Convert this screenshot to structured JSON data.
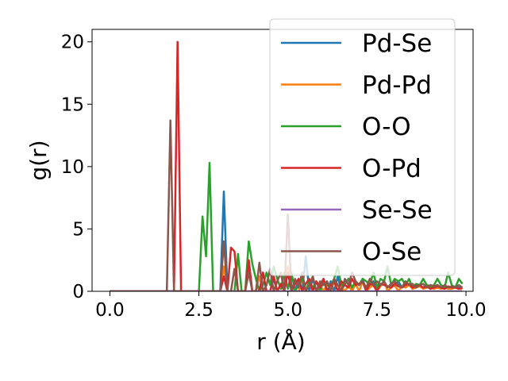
{
  "chart_data": {
    "type": "line",
    "title": "",
    "xlabel": "r (Å)",
    "ylabel": "g(r)",
    "xlim": [
      -0.5,
      10.2
    ],
    "ylim": [
      0,
      21
    ],
    "xticks": [
      0.0,
      2.5,
      5.0,
      7.5,
      10.0
    ],
    "xtick_labels": [
      "0.0",
      "2.5",
      "5.0",
      "7.5",
      "10.0"
    ],
    "yticks": [
      0,
      5,
      10,
      15,
      20
    ],
    "ytick_labels": [
      "0",
      "5",
      "10",
      "15",
      "20"
    ],
    "grid": false,
    "legend_position": "top-right",
    "x": [
      0.0,
      0.1,
      0.2,
      0.3,
      0.4,
      0.5,
      0.6,
      0.7,
      0.8,
      0.9,
      1.0,
      1.1,
      1.2,
      1.3,
      1.4,
      1.5,
      1.6,
      1.7,
      1.8,
      1.9,
      2.0,
      2.1,
      2.2,
      2.3,
      2.4,
      2.5,
      2.6,
      2.7,
      2.8,
      2.9,
      3.0,
      3.1,
      3.2,
      3.3,
      3.4,
      3.5,
      3.6,
      3.7,
      3.8,
      3.9,
      4.0,
      4.1,
      4.2,
      4.3,
      4.4,
      4.5,
      4.6,
      4.7,
      4.8,
      4.9,
      5.0,
      5.1,
      5.2,
      5.3,
      5.4,
      5.5,
      5.6,
      5.7,
      5.8,
      5.9,
      6.0,
      6.1,
      6.2,
      6.3,
      6.4,
      6.5,
      6.6,
      6.7,
      6.8,
      6.9,
      7.0,
      7.1,
      7.2,
      7.3,
      7.4,
      7.5,
      7.6,
      7.7,
      7.8,
      7.9,
      8.0,
      8.1,
      8.2,
      8.3,
      8.4,
      8.5,
      8.6,
      8.7,
      8.8,
      8.9,
      9.0,
      9.1,
      9.2,
      9.3,
      9.4,
      9.5,
      9.6,
      9.7,
      9.8,
      9.9
    ],
    "series": [
      {
        "name": "Pd-Se",
        "color": "#1f77b4",
        "values": [
          0,
          0,
          0,
          0,
          0,
          0,
          0,
          0,
          0,
          0,
          0,
          0,
          0,
          0,
          0,
          0,
          0,
          0,
          0,
          0,
          0,
          0,
          0,
          0,
          0,
          0,
          0,
          0,
          0,
          0,
          0,
          0,
          8.0,
          0,
          0,
          0,
          0,
          0,
          0,
          2.0,
          0,
          0,
          0,
          1.5,
          0,
          0,
          1.0,
          0,
          0,
          0,
          2.0,
          0,
          0,
          1.0,
          0,
          2.8,
          0,
          1.0,
          0,
          0.5,
          1.0,
          0,
          0.8,
          0,
          1.2,
          0,
          0.6,
          1.0,
          0,
          0.8,
          0.5,
          1.0,
          0,
          0.6,
          0.8,
          0,
          0.5,
          0.8,
          0.3,
          0.6,
          0.4,
          0.8,
          0.3,
          0.5,
          0.6,
          0.2,
          0.5,
          0.4,
          0.3,
          0.5,
          0.4,
          0.2,
          0.5,
          0.3,
          0.4,
          0.3,
          0.2,
          0.4,
          0.3,
          0.2
        ]
      },
      {
        "name": "Pd-Pd",
        "color": "#ff7f0e",
        "values": [
          0,
          0,
          0,
          0,
          0,
          0,
          0,
          0,
          0,
          0,
          0,
          0,
          0,
          0,
          0,
          0,
          0,
          0,
          0,
          0,
          0,
          0,
          0,
          0,
          0,
          0,
          0,
          0,
          0,
          0,
          0,
          0,
          2.0,
          0,
          0,
          0,
          0,
          0,
          0,
          0,
          0,
          0,
          1.2,
          0,
          0,
          0,
          0,
          0,
          0,
          0,
          2.0,
          0,
          0,
          0,
          1.0,
          0,
          0.8,
          0,
          0,
          0.5,
          0,
          0.6,
          0,
          0.8,
          0,
          0.4,
          0,
          0.5,
          0,
          0.6,
          0,
          0.8,
          0,
          0.3,
          0.5,
          0,
          0.4,
          0.8,
          0,
          0.3,
          0.5,
          0,
          0.4,
          0.3,
          0.5,
          0.2,
          0.3,
          0.4,
          0.2,
          0.3,
          0.4,
          0.2,
          0.3,
          0.2,
          0.3,
          0.2,
          0.2,
          0.3,
          0.2,
          0.2
        ]
      },
      {
        "name": "O-O",
        "color": "#2ca02c",
        "values": [
          0,
          0,
          0,
          0,
          0,
          0,
          0,
          0,
          0,
          0,
          0,
          0,
          0,
          0,
          0,
          0,
          0,
          0,
          0,
          0,
          0,
          0,
          0,
          0,
          0,
          0,
          6.0,
          2.8,
          10.3,
          0,
          0,
          0,
          0,
          0,
          0,
          0,
          3.0,
          0,
          0,
          4.0,
          2.2,
          1.0,
          0,
          0.5,
          1.5,
          0.5,
          2.0,
          1.0,
          0.2,
          1.5,
          0.2,
          1.5,
          0,
          0.5,
          1.0,
          0,
          0.8,
          0.3,
          0.8,
          0,
          0.8,
          0.5,
          0.5,
          1.0,
          2.0,
          0.5,
          0.6,
          1.0,
          0.3,
          0.8,
          0.5,
          1.0,
          0.8,
          0.5,
          1.5,
          0.3,
          1.0,
          0.8,
          2.0,
          0.5,
          1.0,
          0.8,
          1.0,
          0.5,
          1.0,
          0.3,
          0.6,
          0.5,
          1.0,
          0.5,
          0.3,
          0.5,
          1.0,
          0.5,
          0.3,
          1.5,
          0.5,
          0.3,
          1.0,
          0.6
        ]
      },
      {
        "name": "O-Pd",
        "color": "#d62728",
        "values": [
          0,
          0,
          0,
          0,
          0,
          0,
          0,
          0,
          0,
          0,
          0,
          0,
          0,
          0,
          0,
          0,
          0,
          0,
          0,
          20.0,
          0,
          0,
          0,
          0,
          0,
          0,
          0,
          0,
          0,
          0,
          0,
          0,
          1.2,
          0,
          3.5,
          3.2,
          0,
          0,
          0,
          2.5,
          0,
          0,
          0,
          1.5,
          0,
          0,
          1.2,
          0,
          0.6,
          0,
          1.5,
          0,
          0.6,
          1.0,
          0,
          0.6,
          1.0,
          0,
          0.8,
          0.3,
          1.0,
          0,
          0.5,
          0.8,
          0,
          0.8,
          0.5,
          0.3,
          1.0,
          0.5,
          0.6,
          0.8,
          0,
          0.6,
          0.5,
          0,
          0.6,
          0.5,
          0.4,
          0.3,
          0.6,
          0.4,
          0.3,
          0.5,
          0.6,
          0.3,
          0.4,
          0.5,
          0.3,
          0.4,
          0.2,
          0.3,
          0.4,
          0.3,
          0.2,
          0.4,
          0.3,
          0.3,
          0.2,
          0.3
        ]
      },
      {
        "name": "Se-Se",
        "color": "#9467bd",
        "values": [
          0,
          0,
          0,
          0,
          0,
          0,
          0,
          0,
          0,
          0,
          0,
          0,
          0,
          0,
          0,
          0,
          0,
          0,
          0,
          0,
          0,
          0,
          0,
          0,
          0,
          0,
          0,
          0,
          0,
          0,
          0,
          0,
          0,
          0,
          0,
          0,
          0,
          0,
          0,
          0,
          0,
          0,
          0,
          0,
          0,
          0,
          0,
          0,
          0,
          0,
          0,
          0,
          0,
          0,
          0,
          0,
          0,
          0,
          0,
          0,
          0,
          0,
          0,
          0,
          0,
          0,
          0,
          0,
          0,
          0,
          0,
          0,
          0,
          0,
          0,
          0,
          0,
          0,
          0,
          0,
          0,
          0,
          0,
          0,
          0,
          0,
          0,
          0,
          0,
          0,
          0,
          0,
          0,
          0,
          0,
          0,
          0,
          0,
          0,
          0
        ]
      },
      {
        "name": "O-Se",
        "color": "#8c564b",
        "values": [
          0,
          0,
          0,
          0,
          0,
          0,
          0,
          0,
          0,
          0,
          0,
          0,
          0,
          0,
          0,
          0,
          0,
          13.7,
          0,
          0,
          0,
          0,
          0,
          0,
          0,
          0,
          0,
          0,
          0,
          0,
          0,
          0,
          4.0,
          0,
          0,
          1.8,
          0,
          0,
          0,
          1.5,
          0,
          0,
          2.3,
          0,
          0.5,
          1.8,
          0,
          0.8,
          1.5,
          0,
          6.2,
          0,
          1.0,
          0.3,
          1.5,
          0,
          0.5,
          1.2,
          0,
          0.8,
          0.5,
          0.8,
          0,
          1.0,
          0.5,
          0,
          1.0,
          0.5,
          1.5,
          0.8,
          0.5,
          0.8,
          0.3,
          1.0,
          0.5,
          0.8,
          0.5,
          0.8,
          0.3,
          0.6,
          0.8,
          0.5,
          0.3,
          0.8,
          0.5,
          0.6,
          0.3,
          0.5,
          0.6,
          0.3,
          0.5,
          0.4,
          0.5,
          0.3,
          0.5,
          0.3,
          0.4,
          0.3,
          0.5,
          0.3
        ]
      }
    ]
  }
}
